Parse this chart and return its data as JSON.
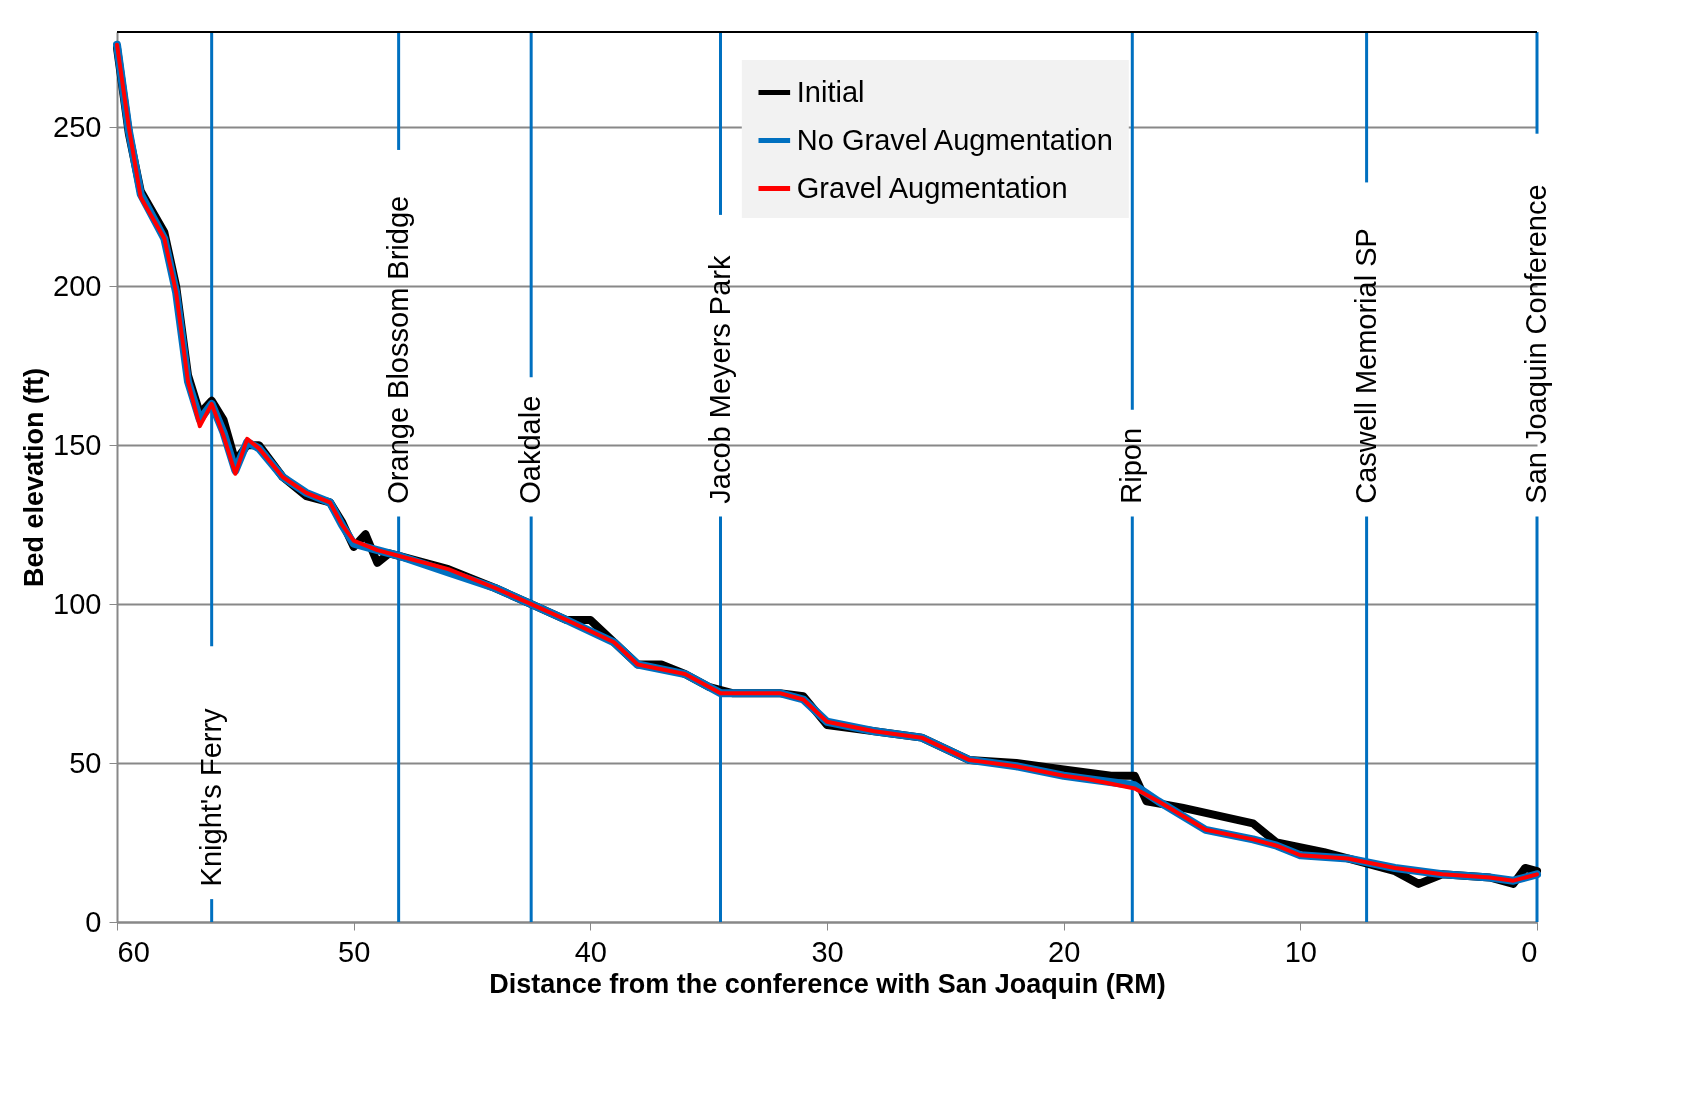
{
  "chart_data": {
    "type": "line",
    "xlabel": "Distance from the conference with San Joaquin (RM)",
    "ylabel": "Bed elevation (ft)",
    "xlim": [
      60,
      0
    ],
    "xticks": [
      60,
      50,
      40,
      30,
      20,
      10,
      0
    ],
    "ylim": [
      0,
      280
    ],
    "yticks": [
      0,
      50,
      100,
      150,
      200,
      250
    ],
    "grid": "y",
    "legend": "top right",
    "series": [
      {
        "name": "Initial",
        "color": "#000000",
        "x": [
          60,
          59.5,
          59,
          58,
          57.5,
          57,
          56.5,
          56,
          55.5,
          55,
          54.5,
          54,
          53,
          52,
          51,
          50.5,
          50,
          49.5,
          49,
          48.5,
          48,
          46,
          44,
          42.5,
          41,
          40,
          39,
          38,
          37,
          36,
          35,
          34,
          32,
          31,
          30,
          28,
          26,
          24,
          22,
          20,
          18,
          17,
          16.5,
          15,
          12,
          11,
          9,
          8,
          6,
          5,
          4,
          2,
          1,
          0.5,
          0
        ],
        "values": [
          275,
          248,
          230,
          217,
          200,
          172,
          160,
          164,
          158,
          145,
          150,
          150,
          140,
          134,
          132,
          126,
          118,
          122,
          113,
          116,
          115,
          111,
          105,
          100,
          95,
          95,
          88,
          81,
          81,
          78,
          74,
          72,
          72,
          71,
          62,
          60,
          58,
          51,
          50,
          48,
          46,
          46,
          38,
          36,
          31,
          25,
          22,
          20,
          16,
          12,
          15,
          14,
          12,
          17,
          16
        ]
      },
      {
        "name": "No Gravel Augmentation",
        "color": "#0070c0",
        "x": [
          60,
          59.5,
          59,
          58,
          57.5,
          57,
          56.5,
          56,
          55.5,
          55,
          54.5,
          54,
          53,
          52,
          51,
          50.5,
          50,
          49,
          48,
          46,
          44,
          42.5,
          41,
          39,
          38,
          36,
          35,
          34.5,
          32,
          31,
          30,
          28,
          26,
          24,
          22,
          20,
          19,
          17,
          16,
          14,
          12,
          11,
          10,
          8,
          6,
          4,
          2,
          1,
          0
        ],
        "values": [
          276,
          249,
          229,
          215,
          198,
          170,
          158,
          163,
          154,
          142,
          151,
          149,
          140,
          135,
          132,
          125,
          119,
          117,
          115,
          110,
          105,
          100,
          95,
          88,
          81,
          78,
          74,
          72,
          72,
          70,
          63,
          60,
          58,
          51,
          49,
          46,
          45,
          43,
          38,
          29,
          26,
          24,
          21,
          20,
          17,
          15,
          14,
          13,
          15
        ]
      },
      {
        "name": "Gravel Augmentation",
        "color": "#ff0000",
        "x": [
          60,
          59.5,
          59,
          58,
          57.5,
          57,
          56.5,
          56,
          55.5,
          55,
          54.5,
          54,
          53,
          52,
          51,
          50.5,
          50,
          49,
          48,
          46,
          44,
          42.5,
          41,
          39,
          38,
          36,
          35,
          34.5,
          32,
          31,
          30,
          28,
          26,
          24,
          22,
          20,
          19,
          17,
          16,
          14,
          12,
          11,
          10,
          8,
          6,
          4,
          2,
          1,
          0
        ],
        "values": [
          276,
          250,
          228,
          215,
          198,
          170,
          156,
          163,
          153,
          141,
          152,
          149,
          140,
          135,
          132,
          125,
          120,
          117,
          115,
          111,
          105,
          100,
          95,
          88,
          81,
          78,
          74,
          72,
          72,
          70,
          63,
          60,
          58,
          51,
          49,
          46,
          45,
          42,
          38,
          29,
          26,
          24,
          21,
          20,
          17,
          15,
          14,
          13,
          15
        ]
      }
    ],
    "ref_lines": [
      {
        "axis": "x",
        "value": 56,
        "label": "Knight's Ferry",
        "color": "#0070c0"
      },
      {
        "axis": "x",
        "value": 48.1,
        "label": "Orange Blossom Bridge",
        "color": "#0070c0"
      },
      {
        "axis": "x",
        "value": 42.5,
        "label": "Oakdale",
        "color": "#0070c0"
      },
      {
        "axis": "x",
        "value": 34.5,
        "label": "Jacob Meyers Park",
        "color": "#0070c0"
      },
      {
        "axis": "x",
        "value": 17.1,
        "label": "Ripon",
        "color": "#0070c0"
      },
      {
        "axis": "x",
        "value": 7.2,
        "label": "Caswell Memorial SP",
        "color": "#0070c0"
      },
      {
        "axis": "x",
        "value": 0,
        "label": "San Joaquin Conference",
        "color": "#0070c0"
      }
    ]
  }
}
